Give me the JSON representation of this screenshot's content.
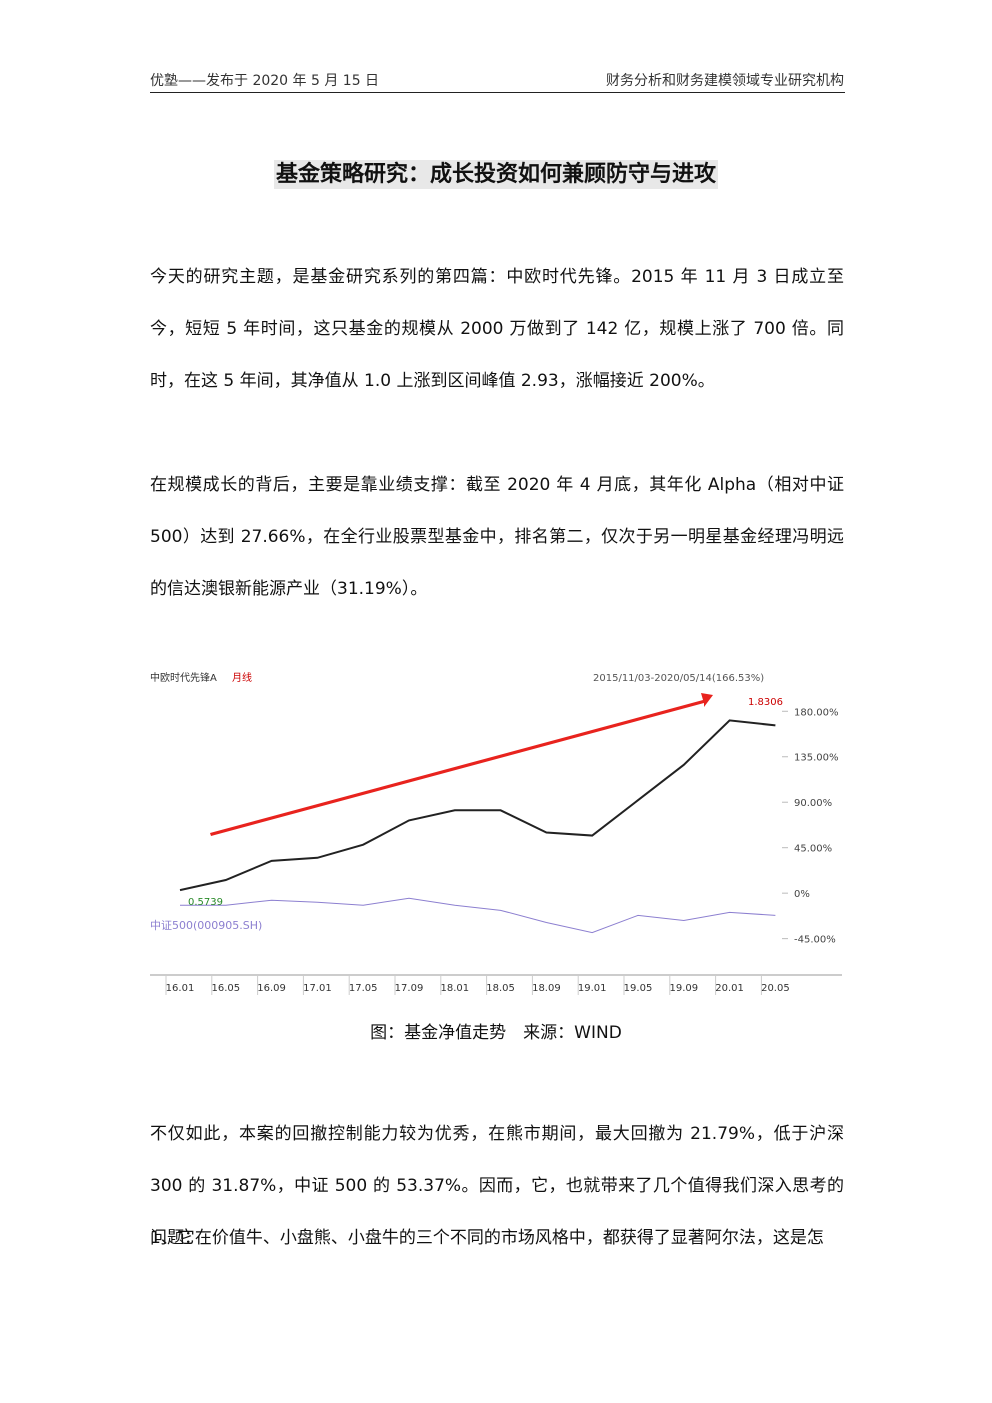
{
  "header": {
    "left": "优塾——发布于 2020 年 5 月 15 日",
    "right": "财务分析和财务建模领域专业研究机构"
  },
  "title": "基金策略研究：成长投资如何兼顾防守与进攻",
  "paragraphs": [
    "今天的研究主题，是基金研究系列的第四篇：中欧时代先锋。2015 年 11 月 3 日成立至今，短短 5 年时间，这只基金的规模从 2000 万做到了 142 亿，规模上涨了 700 倍。同时，在这 5 年间，其净值从 1.0 上涨到区间峰值 2.93，涨幅接近 200%。",
    "在规模成长的背后，主要是靠业绩支撑：截至 2020 年 4 月底，其年化 Alpha（相对中证 500）达到 27.66%，在全行业股票型基金中，排名第二，仅次于另一明星基金经理冯明远的信达澳银新能源产业（31.19%）。"
  ],
  "figure": {
    "chart_data": {
      "type": "line",
      "title": "中欧时代先锋A",
      "period": "月线",
      "range_label": "2015/11/03-2020/05/14(166.53%)",
      "annotations": [
        "1.8306",
        "0.5739"
      ],
      "categories": [
        "16.01",
        "16.05",
        "16.09",
        "17.01",
        "17.05",
        "17.09",
        "18.01",
        "18.05",
        "18.09",
        "19.01",
        "19.05",
        "19.09",
        "20.01",
        "20.05"
      ],
      "series": [
        {
          "color": "#222222",
          "values": [
            3,
            13,
            32,
            35,
            48,
            72,
            82,
            82,
            60,
            57,
            92,
            127,
            171,
            166
          ]
        },
        {
          "name": "中证500(000905.SH)",
          "color": "#8c7fd0",
          "values": [
            -12,
            -12,
            -7,
            -9,
            -12,
            -5,
            -12,
            -17,
            -29,
            -39,
            -22,
            -27,
            -19,
            -22
          ]
        }
      ],
      "ylim": [
        -81,
        206
      ],
      "yticks": [
        {
          "value": 180,
          "label": "180.00%"
        },
        {
          "value": 135,
          "label": "135.00%"
        },
        {
          "value": 90,
          "label": "90.00%"
        },
        {
          "value": 45,
          "label": "45.00%"
        },
        {
          "value": 0,
          "label": "0%"
        },
        {
          "value": -45,
          "label": "-45.00%"
        }
      ]
    },
    "caption": "图：基金净值走势　来源：WIND"
  },
  "paragraphs_after": [
    "不仅如此，本案的回撤控制能力较为优秀，在熊市期间，最大回撤为 21.79%，低于沪深 300 的 31.87%，中证 500 的 53.37%。因而，它，也就带来了几个值得我们深入思考的问题：",
    "1、它在价值牛、小盘熊、小盘牛的三个不同的市场风格中，都获得了显著阿尔法，这是怎"
  ]
}
